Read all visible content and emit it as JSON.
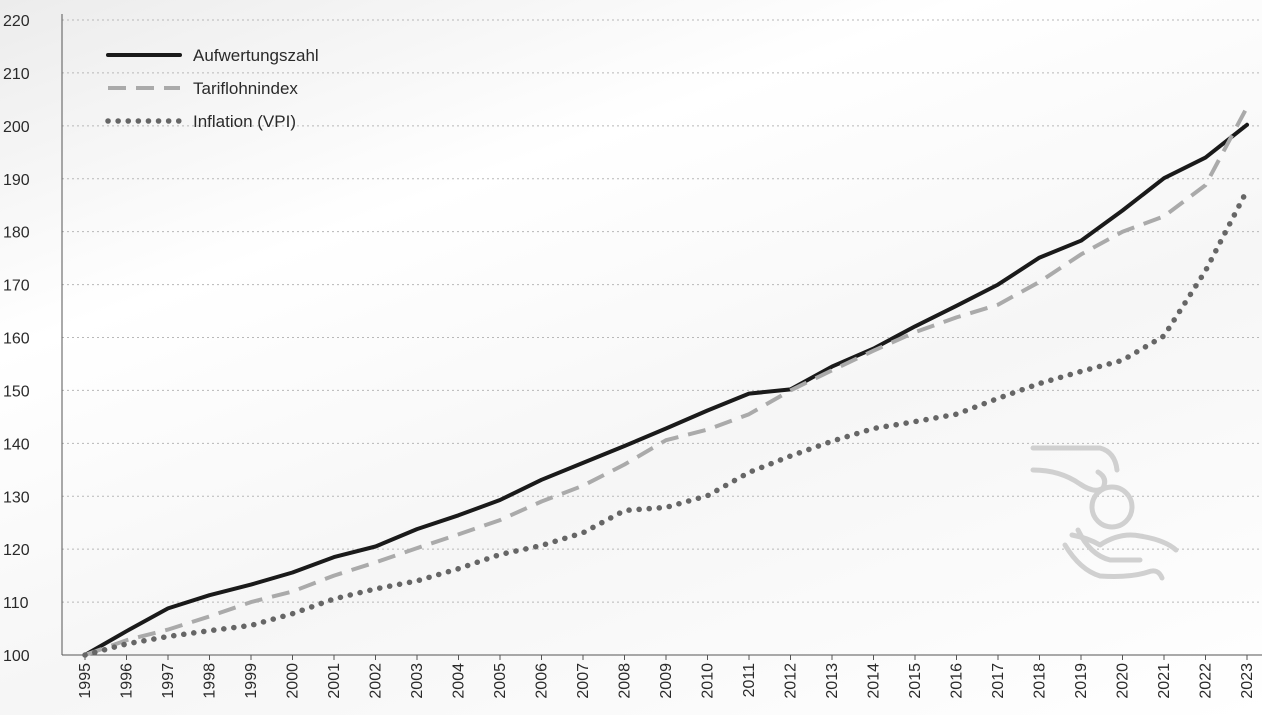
{
  "chart_data": {
    "type": "line",
    "title": "",
    "xlabel": "",
    "ylabel": "",
    "ylim": [
      100,
      220
    ],
    "yticks": [
      100,
      110,
      120,
      130,
      140,
      150,
      160,
      170,
      180,
      190,
      200,
      210,
      220
    ],
    "grid": "horizontal dotted",
    "legend_position": "top-left",
    "x": [
      "1995",
      "1996",
      "1997",
      "1998",
      "1999",
      "2000",
      "2001",
      "2002",
      "2003",
      "2004",
      "2005",
      "2006",
      "2007",
      "2008",
      "2009",
      "2010",
      "2011",
      "2012",
      "2013",
      "2014",
      "2015",
      "2016",
      "2017",
      "2018",
      "2019",
      "2020",
      "2021",
      "2022",
      "2023"
    ],
    "series": [
      {
        "name": "Aufwertungszahl",
        "style": "solid",
        "color": "#1a1a1a",
        "values": [
          100.0,
          104.5,
          108.8,
          111.3,
          113.3,
          115.6,
          118.5,
          120.5,
          123.8,
          126.4,
          129.3,
          133.1,
          136.3,
          139.5,
          142.8,
          146.2,
          149.4,
          150.2,
          154.5,
          157.9,
          162.1,
          166.0,
          170.0,
          175.1,
          178.3,
          184.0,
          190.1,
          194.0,
          200.2
        ]
      },
      {
        "name": "Tariflohnindex",
        "style": "dashed",
        "color": "#aaaaaa",
        "values": [
          100.0,
          102.8,
          104.8,
          107.3,
          110.0,
          112.0,
          115.0,
          117.5,
          120.2,
          122.8,
          125.5,
          129.0,
          132.0,
          136.0,
          140.6,
          142.6,
          145.5,
          150.0,
          153.8,
          157.5,
          161.0,
          163.8,
          166.2,
          170.5,
          175.7,
          180.0,
          182.9,
          188.8,
          203.5
        ]
      },
      {
        "name": "Inflation (VPI)",
        "style": "dotted",
        "color": "#666666",
        "values": [
          100.0,
          102.1,
          103.5,
          104.6,
          105.6,
          107.8,
          110.6,
          112.5,
          114.0,
          116.3,
          119.0,
          120.7,
          123.1,
          127.3,
          127.9,
          130.1,
          134.5,
          137.6,
          140.4,
          142.8,
          144.1,
          145.5,
          148.5,
          151.3,
          153.6,
          155.7,
          160.3,
          172.6,
          187.8
        ]
      }
    ]
  }
}
